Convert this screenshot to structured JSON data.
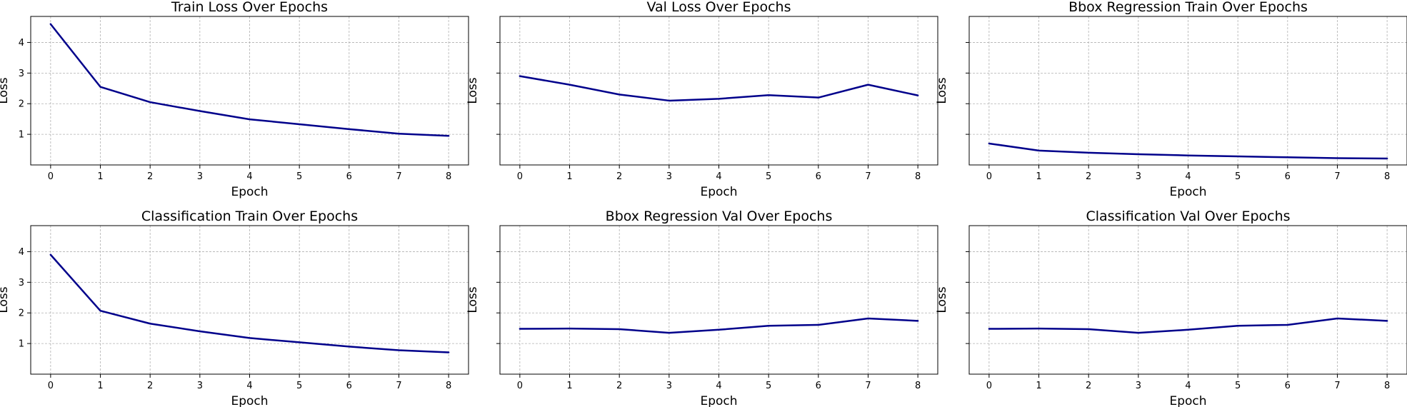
{
  "chart_data": [
    {
      "type": "line",
      "title": "Train Loss Over Epochs",
      "xlabel": "Epoch",
      "ylabel": "Loss",
      "x": [
        0,
        1,
        2,
        3,
        4,
        5,
        6,
        7,
        8
      ],
      "series": [
        {
          "values": [
            4.6,
            2.55,
            2.05,
            1.76,
            1.49,
            1.33,
            1.17,
            1.02,
            0.95
          ],
          "color": "#00008b"
        }
      ],
      "xlim": [
        -0.4,
        8.4
      ],
      "ylim": [
        0.0,
        4.85
      ],
      "xticks": [
        0,
        1,
        2,
        3,
        4,
        5,
        6,
        7,
        8
      ],
      "yticks": [
        1,
        2,
        3,
        4
      ],
      "show_ytick_labels": true,
      "grid": true
    },
    {
      "type": "line",
      "title": "Val Loss Over Epochs",
      "xlabel": "Epoch",
      "ylabel": "Loss",
      "x": [
        0,
        1,
        2,
        3,
        4,
        5,
        6,
        7,
        8
      ],
      "series": [
        {
          "values": [
            2.9,
            2.62,
            2.3,
            2.1,
            2.16,
            2.28,
            2.2,
            2.62,
            2.27
          ],
          "color": "#00008b"
        }
      ],
      "xlim": [
        -0.4,
        8.4
      ],
      "ylim": [
        0.0,
        4.85
      ],
      "xticks": [
        0,
        1,
        2,
        3,
        4,
        5,
        6,
        7,
        8
      ],
      "yticks": [
        1,
        2,
        3,
        4
      ],
      "show_ytick_labels": false,
      "grid": true
    },
    {
      "type": "line",
      "title": "Bbox Regression Train Over Epochs",
      "xlabel": "Epoch",
      "ylabel": "Loss",
      "x": [
        0,
        1,
        2,
        3,
        4,
        5,
        6,
        7,
        8
      ],
      "series": [
        {
          "values": [
            0.7,
            0.47,
            0.4,
            0.35,
            0.31,
            0.28,
            0.25,
            0.22,
            0.21
          ],
          "color": "#00008b"
        }
      ],
      "xlim": [
        -0.4,
        8.4
      ],
      "ylim": [
        0.0,
        4.85
      ],
      "xticks": [
        0,
        1,
        2,
        3,
        4,
        5,
        6,
        7,
        8
      ],
      "yticks": [
        1,
        2,
        3,
        4
      ],
      "show_ytick_labels": false,
      "grid": true
    },
    {
      "type": "line",
      "title": "Classification Train Over Epochs",
      "xlabel": "Epoch",
      "ylabel": "Loss",
      "x": [
        0,
        1,
        2,
        3,
        4,
        5,
        6,
        7,
        8
      ],
      "series": [
        {
          "values": [
            3.9,
            2.07,
            1.65,
            1.4,
            1.18,
            1.04,
            0.9,
            0.78,
            0.71
          ],
          "color": "#00008b"
        }
      ],
      "xlim": [
        -0.4,
        8.4
      ],
      "ylim": [
        0.0,
        4.85
      ],
      "xticks": [
        0,
        1,
        2,
        3,
        4,
        5,
        6,
        7,
        8
      ],
      "yticks": [
        1,
        2,
        3,
        4
      ],
      "show_ytick_labels": true,
      "grid": true
    },
    {
      "type": "line",
      "title": "Bbox Regression Val Over Epochs",
      "xlabel": "Epoch",
      "ylabel": "Loss",
      "x": [
        0,
        1,
        2,
        3,
        4,
        5,
        6,
        7,
        8
      ],
      "series": [
        {
          "values": [
            1.48,
            1.49,
            1.47,
            1.35,
            1.45,
            1.58,
            1.61,
            1.82,
            1.74
          ],
          "color": "#00008b"
        }
      ],
      "xlim": [
        -0.4,
        8.4
      ],
      "ylim": [
        0.0,
        4.85
      ],
      "xticks": [
        0,
        1,
        2,
        3,
        4,
        5,
        6,
        7,
        8
      ],
      "yticks": [
        1,
        2,
        3,
        4
      ],
      "show_ytick_labels": false,
      "grid": true
    },
    {
      "type": "line",
      "title": "Classification Val Over Epochs",
      "xlabel": "Epoch",
      "ylabel": "Loss",
      "x": [
        0,
        1,
        2,
        3,
        4,
        5,
        6,
        7,
        8
      ],
      "series": [
        {
          "values": [
            1.48,
            1.49,
            1.47,
            1.35,
            1.45,
            1.58,
            1.61,
            1.82,
            1.74
          ],
          "color": "#00008b"
        }
      ],
      "xlim": [
        -0.4,
        8.4
      ],
      "ylim": [
        0.0,
        4.85
      ],
      "xticks": [
        0,
        1,
        2,
        3,
        4,
        5,
        6,
        7,
        8
      ],
      "yticks": [
        1,
        2,
        3,
        4
      ],
      "show_ytick_labels": false,
      "grid": true
    }
  ]
}
